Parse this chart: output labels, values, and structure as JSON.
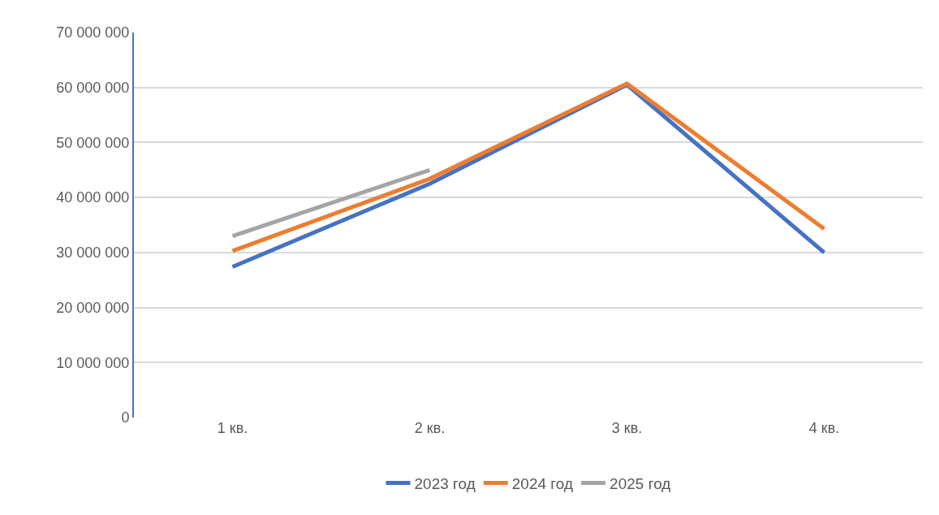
{
  "chart_data": {
    "type": "line",
    "categories": [
      "1 кв.",
      "2 кв.",
      "3 кв.",
      "4 кв."
    ],
    "series": [
      {
        "name": "2023 год",
        "color": "#4472c4",
        "values": [
          27400000,
          42500000,
          60500000,
          30000000
        ]
      },
      {
        "name": "2024 год",
        "color": "#ed7d31",
        "values": [
          30300000,
          43400000,
          60700000,
          34300000
        ]
      },
      {
        "name": "2025 год",
        "color": "#a5a5a5",
        "values": [
          33000000,
          45000000,
          null,
          null
        ]
      }
    ],
    "ylim": [
      0,
      70000000
    ],
    "yticks": [
      {
        "value": 0,
        "label": "0"
      },
      {
        "value": 10000000,
        "label": "10 000 000"
      },
      {
        "value": 20000000,
        "label": "20 000 000"
      },
      {
        "value": 30000000,
        "label": "30 000 000"
      },
      {
        "value": 40000000,
        "label": "40 000 000"
      },
      {
        "value": 50000000,
        "label": "50 000 000"
      },
      {
        "value": 60000000,
        "label": "60 000 000"
      },
      {
        "value": 70000000,
        "label": "70 000 000"
      }
    ],
    "grid": "y",
    "legend": "bottom",
    "marker": "none",
    "line_style": "solid"
  }
}
